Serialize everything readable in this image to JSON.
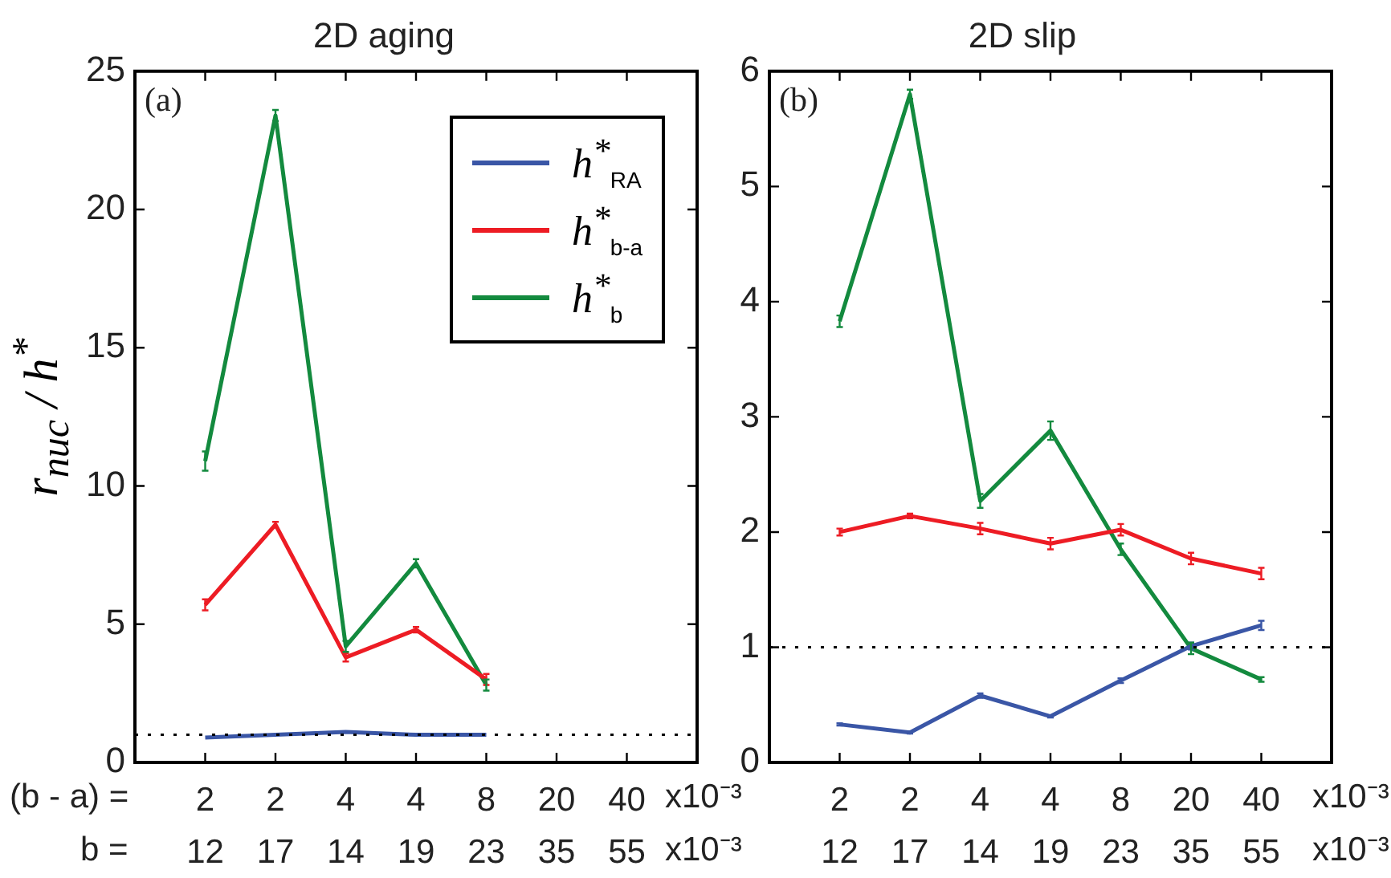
{
  "chart_data": [
    {
      "type": "line",
      "title": "2D aging",
      "ylabel": "r$_{nuc}$ / h$^{*}$",
      "categories": [
        "2\n12",
        "2\n17",
        "4\n14",
        "4\n19",
        "8\n23",
        "20\n35",
        "40\n55"
      ],
      "ylim": [
        0,
        25
      ],
      "yticks": [
        0,
        5,
        10,
        15,
        20,
        25
      ],
      "grid": false,
      "legend": "top right",
      "series": [
        {
          "name": "h$^{*}$$_{RA}$",
          "color": "#3a56a6",
          "values": [
            0.9,
            1.0,
            1.1,
            1.0,
            1.0,
            null,
            null
          ]
        },
        {
          "name": "h$^{*}$$_{b-a}$",
          "color": "#ed1c24",
          "values": [
            5.7,
            8.6,
            3.8,
            4.8,
            3.0,
            null,
            null
          ],
          "errors": [
            0.2,
            0.1,
            0.15,
            0.1,
            0.2,
            null,
            null
          ]
        },
        {
          "name": "h$^{*}$$_{b}$",
          "color": "#138a3e",
          "values": [
            10.9,
            23.4,
            4.2,
            7.2,
            2.8,
            null,
            null
          ],
          "errors": [
            0.35,
            0.2,
            0.2,
            0.15,
            0.2,
            null,
            null
          ]
        }
      ],
      "ref_lines": [
        {
          "axis": "y",
          "value": 1,
          "line_style": "dotted",
          "color": "#000000"
        }
      ],
      "annotations": [
        "(a)",
        "(b - a) =",
        "b =",
        "x10⁻³",
        "x10⁻³"
      ]
    },
    {
      "type": "line",
      "title": "2D slip",
      "categories": [
        "2\n12",
        "2\n17",
        "4\n14",
        "4\n19",
        "8\n23",
        "20\n35",
        "40\n55"
      ],
      "ylim": [
        0,
        6
      ],
      "yticks": [
        0,
        1,
        2,
        3,
        4,
        5,
        6
      ],
      "grid": false,
      "series": [
        {
          "color": "#3a56a6",
          "values": [
            0.33,
            0.26,
            0.58,
            0.4,
            0.71,
            1.01,
            1.19
          ],
          "errors": [
            0.01,
            0.01,
            0.02,
            0.01,
            0.02,
            0.03,
            0.04
          ]
        },
        {
          "color": "#ed1c24",
          "values": [
            2.0,
            2.14,
            2.03,
            1.9,
            2.02,
            1.77,
            1.64
          ],
          "errors": [
            0.03,
            0.02,
            0.05,
            0.05,
            0.05,
            0.05,
            0.05
          ]
        },
        {
          "color": "#138a3e",
          "values": [
            3.83,
            5.8,
            2.27,
            2.88,
            1.85,
            0.99,
            0.72
          ],
          "errors": [
            0.05,
            0.04,
            0.06,
            0.08,
            0.05,
            0.05,
            0.02
          ]
        }
      ],
      "ref_lines": [
        {
          "axis": "y",
          "value": 1,
          "line_style": "dotted",
          "color": "#000000"
        }
      ],
      "annotations": [
        "(b)",
        "x10⁻³",
        "x10⁻³"
      ]
    }
  ]
}
